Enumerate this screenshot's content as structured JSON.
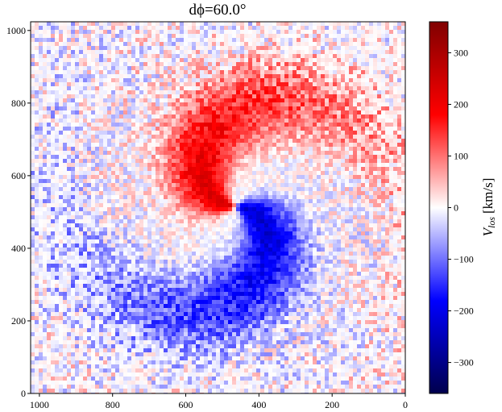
{
  "chart_data": {
    "type": "heatmap",
    "title": "dϕ=60.0°",
    "colorbar": {
      "label": "V",
      "label_sub": "los",
      "label_unit": "[km/s]",
      "colormap": "seismic",
      "range": [
        -360,
        360
      ],
      "ticks": [
        300,
        200,
        100,
        0,
        -100,
        -200,
        -300
      ],
      "tick_labels": [
        "300",
        "200",
        "100",
        "0",
        "−100",
        "−200",
        "−300"
      ],
      "colors": {
        "low": "#00004d",
        "blue": "#0000ff",
        "mid": "#ffffff",
        "red": "#ff0000",
        "high": "#800000"
      }
    },
    "x": {
      "range": [
        1024,
        0
      ],
      "ticks": [
        1000,
        800,
        600,
        400,
        200,
        0
      ],
      "reversed": true
    },
    "y": {
      "range": [
        0,
        1024
      ],
      "ticks": [
        0,
        200,
        400,
        600,
        800,
        1000
      ]
    },
    "field_description": "spiral line-of-sight velocity: red (receding) in upper-right half, blue (approaching) in lower-left half, noisy speckle outside",
    "regions": [
      {
        "name": "red-arm",
        "sign": "positive",
        "peak": 150
      },
      {
        "name": "blue-arm",
        "sign": "negative",
        "peak": -170
      }
    ]
  }
}
